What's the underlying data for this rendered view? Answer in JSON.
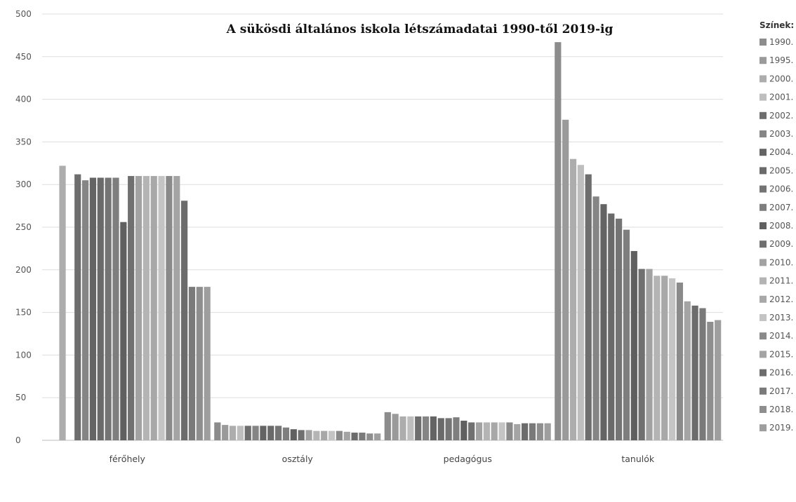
{
  "chart_data": {
    "type": "bar",
    "title": "A sükösdi általános iskola létszámadatai 1990-től 2019-ig",
    "xlabel": "",
    "ylabel": "",
    "ylim": [
      0,
      500
    ],
    "yticks": [
      0,
      50,
      100,
      150,
      200,
      250,
      300,
      350,
      400,
      450,
      500
    ],
    "grid": true,
    "legend_title": "Színek:",
    "legend_position": "right",
    "categories": [
      "férőhely",
      "osztály",
      "pedagógus",
      "tanulók"
    ],
    "series": [
      {
        "name": "1990.",
        "color": "#8c8c8c",
        "values": [
          null,
          21,
          33,
          467
        ]
      },
      {
        "name": "1995.",
        "color": "#9a9a9a",
        "values": [
          null,
          18,
          31,
          376
        ]
      },
      {
        "name": "2000.",
        "color": "#adadad",
        "values": [
          322,
          17,
          28,
          330
        ]
      },
      {
        "name": "2001.",
        "color": "#bebebe",
        "values": [
          null,
          17,
          28,
          323
        ]
      },
      {
        "name": "2002.",
        "color": "#6e6e6e",
        "values": [
          312,
          17,
          28,
          312
        ]
      },
      {
        "name": "2003.",
        "color": "#858585",
        "values": [
          305,
          17,
          28,
          286
        ]
      },
      {
        "name": "2004.",
        "color": "#646464",
        "values": [
          308,
          17,
          28,
          277
        ]
      },
      {
        "name": "2005.",
        "color": "#6a6a6a",
        "values": [
          308,
          17,
          26,
          266
        ]
      },
      {
        "name": "2006.",
        "color": "#747474",
        "values": [
          308,
          17,
          26,
          260
        ]
      },
      {
        "name": "2007.",
        "color": "#7e7e7e",
        "values": [
          308,
          15,
          27,
          247
        ]
      },
      {
        "name": "2008.",
        "color": "#606060",
        "values": [
          256,
          13,
          23,
          222
        ]
      },
      {
        "name": "2009.",
        "color": "#707070",
        "values": [
          310,
          12,
          21,
          201
        ]
      },
      {
        "name": "2010.",
        "color": "#a2a2a2",
        "values": [
          310,
          12,
          21,
          201
        ]
      },
      {
        "name": "2011.",
        "color": "#b4b4b4",
        "values": [
          310,
          11,
          21,
          193
        ]
      },
      {
        "name": "2012.",
        "color": "#a8a8a8",
        "values": [
          310,
          11,
          21,
          193
        ]
      },
      {
        "name": "2013.",
        "color": "#c4c4c4",
        "values": [
          310,
          11,
          21,
          190
        ]
      },
      {
        "name": "2014.",
        "color": "#8a8a8a",
        "values": [
          310,
          11,
          21,
          185
        ]
      },
      {
        "name": "2015.",
        "color": "#a4a4a4",
        "values": [
          310,
          10,
          19,
          163
        ]
      },
      {
        "name": "2016.",
        "color": "#6c6c6c",
        "values": [
          281,
          9,
          20,
          158
        ]
      },
      {
        "name": "2017.",
        "color": "#7a7a7a",
        "values": [
          180,
          9,
          20,
          155
        ]
      },
      {
        "name": "2018.",
        "color": "#8e8e8e",
        "values": [
          180,
          8,
          20,
          139
        ]
      },
      {
        "name": "2019.",
        "color": "#9e9e9e",
        "values": [
          180,
          8,
          20,
          141
        ]
      }
    ]
  }
}
